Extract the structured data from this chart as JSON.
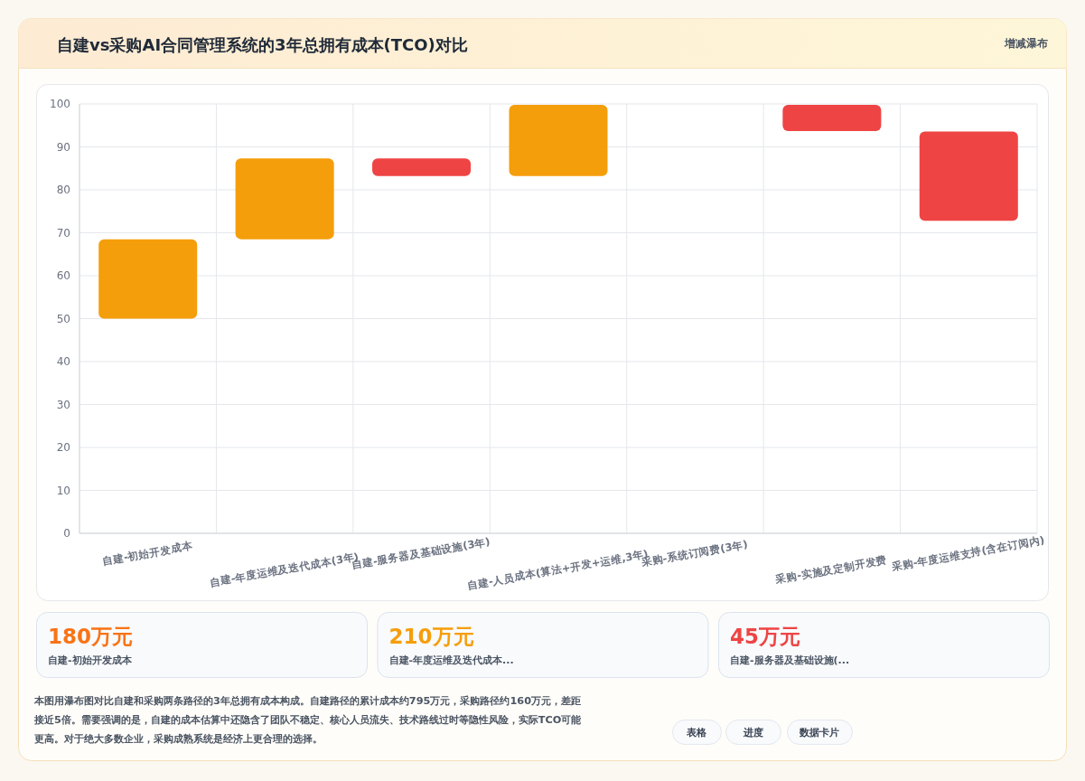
{
  "chart_data": {
    "type": "bar",
    "title": "自建vs采购AI合同管理系统的3年总拥有成本(TCO)对比",
    "subtitle": "增减瀑布",
    "categories": [
      "自建-初始开发成本",
      "自建-年度运维及迭代成本(3年)",
      "自建-服务器及基础设施(3年)",
      "自建-人员成本(算法+开发+运维,3年)",
      "采购-系统订阅费(3年)",
      "采购-实施及定制开发费",
      "采购-年度运维支持(含在订阅内)"
    ],
    "values": [
      18.5,
      18.8,
      -4.1,
      16.6,
      null,
      -6.1,
      -20.8
    ],
    "base": [
      50,
      68.5,
      87.3,
      83.2,
      null,
      99.8,
      93.6
    ],
    "colors": [
      "#f59e0b",
      "#f59e0b",
      "#ef4444",
      "#f59e0b",
      null,
      "#ef4444",
      "#ef4444"
    ],
    "ylim": [
      0,
      100
    ],
    "yticks": [
      0,
      10,
      20,
      30,
      40,
      50,
      60,
      70,
      80,
      90,
      100
    ],
    "grid": true,
    "annotations": [
      "180万元",
      "自建-初始开发成本",
      "210万元",
      "自建-年度运维及迭代成本...",
      "45万元",
      "自建-服务器及基础设施(...",
      "本图用瀑布图对比自建和采购两条路径的3年总拥有成本构成。自建路径的累计成本约795万元，采购路径约160万元，差距接近5倍。需要强调的是，自建的成本估算中还隐含了团队不稳定、核心人员流失、技术路线过时等隐性风险，实际TCO可能更高。对于绝大多数企业，采购成熟系统是经济上更合理的选择。",
      "表格",
      "进度",
      "数据卡片"
    ]
  }
}
